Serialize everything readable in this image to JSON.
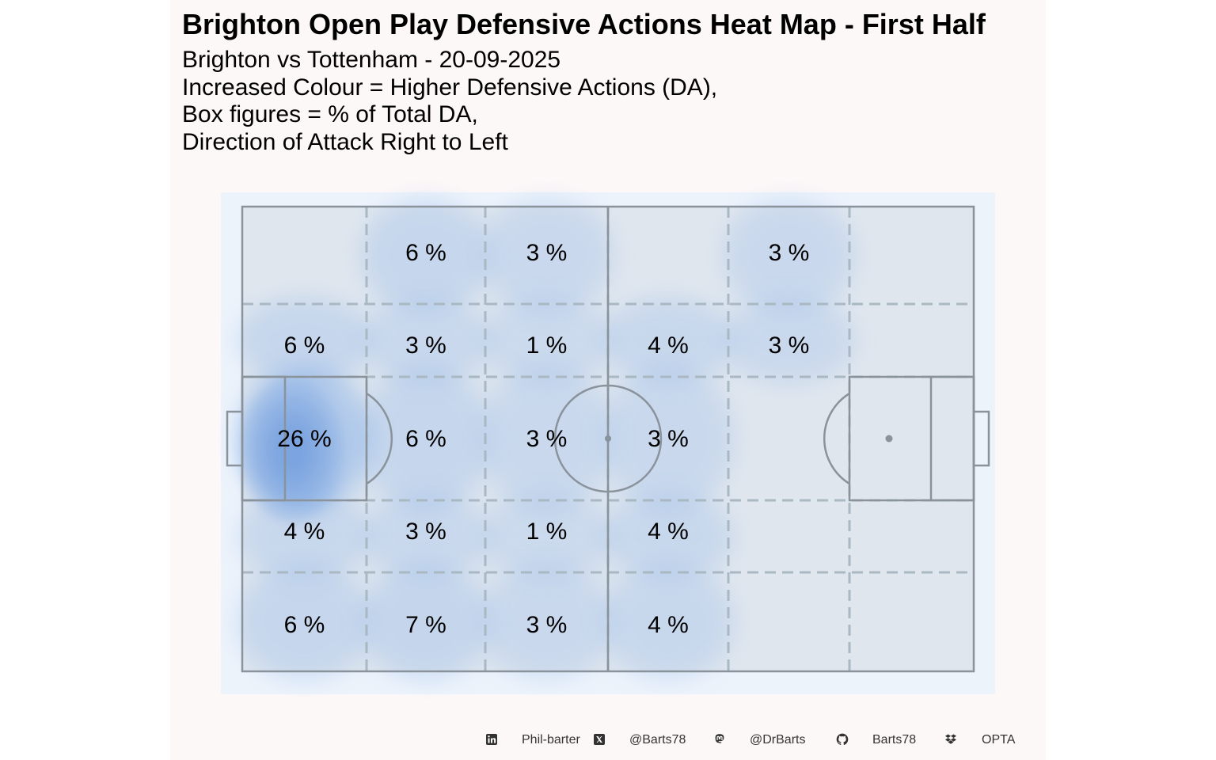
{
  "chart_data": {
    "type": "heatmap",
    "title": "Brighton Open Play Defensive Actions Heat Map - First Half",
    "subtitle_lines": [
      "Brighton vs Tottenham - 20-09-2025",
      "Increased Colour = Higher Defensive Actions (DA),",
      "Box figures = % of Total DA,",
      "Direction of Attack Right to Left"
    ],
    "unit": "%",
    "zones": [
      [
        "",
        "6 %",
        "3 %",
        "",
        "3 %",
        ""
      ],
      [
        "6 %",
        "3 %",
        "1 %",
        "4 %",
        "3 %",
        ""
      ],
      [
        "26 %",
        "6 %",
        "3 %",
        "3 %",
        "",
        ""
      ],
      [
        "4 %",
        "3 %",
        "1 %",
        "4 %",
        "",
        ""
      ],
      [
        "6 %",
        "7 %",
        "3 %",
        "4 %",
        "",
        ""
      ]
    ],
    "zone_values": [
      [
        0,
        6,
        3,
        0,
        3,
        0
      ],
      [
        6,
        3,
        1,
        4,
        3,
        0
      ],
      [
        26,
        6,
        3,
        3,
        0,
        0
      ],
      [
        4,
        3,
        1,
        4,
        0,
        0
      ],
      [
        6,
        7,
        3,
        4,
        0,
        0
      ]
    ],
    "colors": {
      "panel_bg": "#fdf8f8",
      "pitch_outer": "#edf3fb",
      "pitch_fill": "#dfe6ee",
      "lines": "#8a939c",
      "zone_lines": "#a9b8c2",
      "density": "#7aa8e6"
    }
  },
  "footer": {
    "linkedin": "Phil-barter",
    "x": "@Barts78",
    "mastodon": "@DrBarts",
    "github": "Barts78",
    "source": "OPTA"
  }
}
